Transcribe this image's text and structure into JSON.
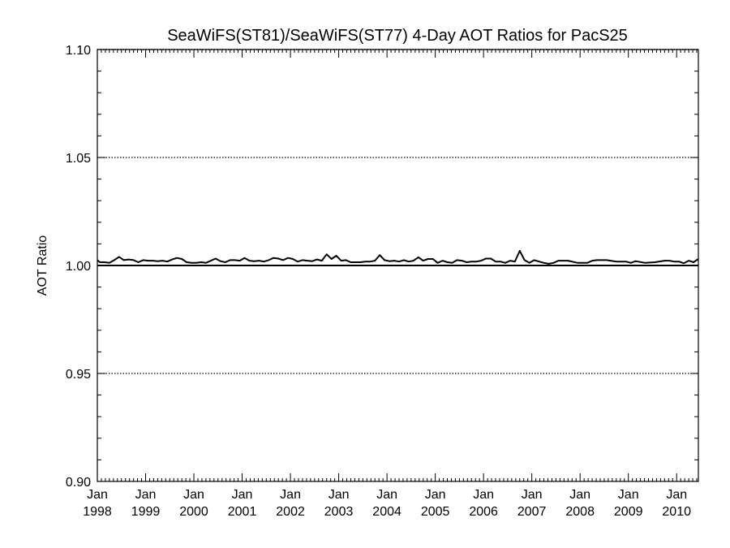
{
  "chart_data": {
    "type": "line",
    "title": "SeaWiFS(ST81)/SeaWiFS(ST77) 4-Day AOT Ratios for PacS25",
    "xlabel": "",
    "ylabel": "AOT Ratio",
    "xlim": [
      1998.0,
      2010.45
    ],
    "ylim": [
      0.9,
      1.1
    ],
    "yticks": [
      "0.90",
      "0.95",
      "1.00",
      "1.05",
      "1.10"
    ],
    "xticks": [
      {
        "month": "Jan",
        "year": "1998",
        "x": 1998.0
      },
      {
        "month": "Jan",
        "year": "1999",
        "x": 1999.0
      },
      {
        "month": "Jan",
        "year": "2000",
        "x": 2000.0
      },
      {
        "month": "Jan",
        "year": "2001",
        "x": 2001.0
      },
      {
        "month": "Jan",
        "year": "2002",
        "x": 2002.0
      },
      {
        "month": "Jan",
        "year": "2003",
        "x": 2003.0
      },
      {
        "month": "Jan",
        "year": "2004",
        "x": 2004.0
      },
      {
        "month": "Jan",
        "year": "2005",
        "x": 2005.0
      },
      {
        "month": "Jan",
        "year": "2006",
        "x": 2006.0
      },
      {
        "month": "Jan",
        "year": "2007",
        "x": 2007.0
      },
      {
        "month": "Jan",
        "year": "2008",
        "x": 2008.0
      },
      {
        "month": "Jan",
        "year": "2009",
        "x": 2009.0
      },
      {
        "month": "Jan",
        "year": "2010",
        "x": 2010.0
      }
    ],
    "grid": "dotted horizontal lines at 0.95 and 1.05",
    "reference_line": 1.0,
    "series": [
      {
        "x": [
          1997.93,
          1998.05,
          1998.15,
          1998.25,
          1998.35,
          1998.45,
          1998.55,
          1998.65,
          1998.75,
          1998.85,
          1998.95,
          1999.05,
          1999.15,
          1999.25,
          1999.35,
          1999.45,
          1999.55,
          1999.65,
          1999.75,
          1999.85,
          1999.95,
          2000.05,
          2000.15,
          2000.25,
          2000.35,
          2000.45,
          2000.55,
          2000.65,
          2000.75,
          2000.85,
          2000.95,
          2001.05,
          2001.15,
          2001.25,
          2001.35,
          2001.45,
          2001.55,
          2001.65,
          2001.75,
          2001.85,
          2001.95,
          2002.05,
          2002.15,
          2002.25,
          2002.35,
          2002.45,
          2002.55,
          2002.65,
          2002.75,
          2002.85,
          2002.95,
          2003.05,
          2003.15,
          2003.25,
          2003.35,
          2003.45,
          2003.55,
          2003.65,
          2003.75,
          2003.85,
          2003.95,
          2004.05,
          2004.15,
          2004.25,
          2004.35,
          2004.45,
          2004.55,
          2004.65,
          2004.75,
          2004.85,
          2004.95,
          2005.05,
          2005.15,
          2005.25,
          2005.35,
          2005.45,
          2005.55,
          2005.65,
          2005.75,
          2005.85,
          2005.95,
          2006.05,
          2006.15,
          2006.25,
          2006.35,
          2006.45,
          2006.55,
          2006.65,
          2006.75,
          2006.85,
          2006.95,
          2007.05,
          2007.15,
          2007.25,
          2007.35,
          2007.45,
          2007.55,
          2007.75,
          2007.95,
          2008.15,
          2008.25,
          2008.35,
          2008.55,
          2008.75,
          2008.85,
          2008.95,
          2009.05,
          2009.15,
          2009.35,
          2009.55,
          2009.75,
          2009.85,
          2009.95,
          2010.05,
          2010.15,
          2010.25,
          2010.35,
          2010.45
        ],
        "y": [
          1.0025,
          1.0015,
          1.0015,
          1.0012,
          1.0025,
          1.004,
          1.0025,
          1.0028,
          1.0025,
          1.0015,
          1.0025,
          1.0022,
          1.0022,
          1.002,
          1.0022,
          1.0018,
          1.0028,
          1.0035,
          1.003,
          1.0015,
          1.0012,
          1.0012,
          1.0015,
          1.0012,
          1.0022,
          1.0032,
          1.002,
          1.0015,
          1.0025,
          1.0025,
          1.0022,
          1.0035,
          1.0022,
          1.002,
          1.0022,
          1.0018,
          1.0025,
          1.0035,
          1.0032,
          1.0025,
          1.0035,
          1.003,
          1.0018,
          1.0025,
          1.0022,
          1.002,
          1.0028,
          1.0022,
          1.0052,
          1.003,
          1.0045,
          1.0022,
          1.0025,
          1.0015,
          1.0015,
          1.0015,
          1.0018,
          1.0018,
          1.0022,
          1.0048,
          1.0025,
          1.002,
          1.0022,
          1.0018,
          1.0025,
          1.0018,
          1.0022,
          1.0038,
          1.0022,
          1.003,
          1.003,
          1.0012,
          1.0022,
          1.0015,
          1.0012,
          1.0025,
          1.0022,
          1.0015,
          1.0018,
          1.0018,
          1.0022,
          1.0032,
          1.0032,
          1.0018,
          1.0018,
          1.0012,
          1.0022,
          1.0018,
          1.0068,
          1.0025,
          1.0012,
          1.0025,
          1.0018,
          1.0012,
          1.0008,
          1.0012,
          1.0022,
          1.0022,
          1.0012,
          1.0012,
          1.0022,
          1.0025,
          1.0025,
          1.0018,
          1.0018,
          1.0018,
          1.0012,
          1.002,
          1.0012,
          1.0015,
          1.0022,
          1.0022,
          1.0018,
          1.0018,
          1.001,
          1.0022,
          1.0015,
          1.003
        ]
      }
    ]
  }
}
